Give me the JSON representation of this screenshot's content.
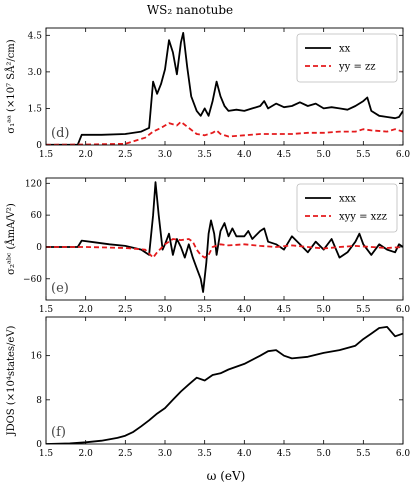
{
  "title": "WS₂ nanotube",
  "xlabel": "ω (eV)",
  "chart_data": [
    {
      "type": "line",
      "panel": "(d)",
      "ylabel": "σ₁ᵃᵃ (×10⁷ SÅ²/cm)",
      "xlim": [
        1.5,
        6.0
      ],
      "ylim": [
        0,
        4.8
      ],
      "xticks": [
        1.5,
        2.0,
        2.5,
        3.0,
        3.5,
        4.0,
        4.5,
        5.0,
        5.5,
        6.0
      ],
      "yticks": [
        0,
        1.5,
        3.0,
        4.5
      ],
      "ytick_labels": [
        "0",
        "1.5",
        "3.0",
        "4.5"
      ],
      "xtick_labels": [
        "1.5",
        "2.0",
        "2.5",
        "3.0",
        "3.5",
        "4.0",
        "4.5",
        "5.0",
        "5.5",
        "6.0"
      ],
      "legend_position": "top-right",
      "series": [
        {
          "name": "xx",
          "color": "#000000",
          "dash": "solid",
          "points": [
            [
              1.5,
              0.01
            ],
            [
              1.9,
              0.01
            ],
            [
              1.95,
              0.42
            ],
            [
              2.2,
              0.42
            ],
            [
              2.5,
              0.45
            ],
            [
              2.7,
              0.55
            ],
            [
              2.8,
              0.7
            ],
            [
              2.85,
              2.6
            ],
            [
              2.9,
              2.1
            ],
            [
              2.95,
              2.5
            ],
            [
              3.0,
              3.1
            ],
            [
              3.05,
              4.3
            ],
            [
              3.1,
              3.8
            ],
            [
              3.15,
              2.9
            ],
            [
              3.2,
              4.2
            ],
            [
              3.23,
              4.6
            ],
            [
              3.28,
              3.2
            ],
            [
              3.33,
              2.0
            ],
            [
              3.4,
              1.4
            ],
            [
              3.45,
              1.2
            ],
            [
              3.5,
              1.5
            ],
            [
              3.55,
              1.2
            ],
            [
              3.6,
              1.8
            ],
            [
              3.65,
              2.6
            ],
            [
              3.7,
              2.0
            ],
            [
              3.75,
              1.6
            ],
            [
              3.8,
              1.4
            ],
            [
              3.9,
              1.45
            ],
            [
              4.0,
              1.4
            ],
            [
              4.1,
              1.5
            ],
            [
              4.2,
              1.6
            ],
            [
              4.25,
              1.8
            ],
            [
              4.3,
              1.5
            ],
            [
              4.4,
              1.7
            ],
            [
              4.5,
              1.55
            ],
            [
              4.6,
              1.6
            ],
            [
              4.7,
              1.75
            ],
            [
              4.8,
              1.6
            ],
            [
              4.9,
              1.7
            ],
            [
              5.0,
              1.5
            ],
            [
              5.1,
              1.55
            ],
            [
              5.2,
              1.5
            ],
            [
              5.3,
              1.45
            ],
            [
              5.4,
              1.6
            ],
            [
              5.5,
              1.8
            ],
            [
              5.55,
              1.95
            ],
            [
              5.6,
              1.4
            ],
            [
              5.7,
              1.2
            ],
            [
              5.8,
              1.15
            ],
            [
              5.9,
              1.1
            ],
            [
              5.95,
              1.15
            ],
            [
              6.0,
              1.4
            ]
          ]
        },
        {
          "name": "yy = zz",
          "color": "#e41a1c",
          "dash": "dashed",
          "points": [
            [
              1.5,
              0.01
            ],
            [
              2.0,
              0.02
            ],
            [
              2.5,
              0.05
            ],
            [
              2.75,
              0.3
            ],
            [
              2.85,
              0.55
            ],
            [
              2.95,
              0.7
            ],
            [
              3.05,
              0.9
            ],
            [
              3.15,
              0.8
            ],
            [
              3.2,
              0.95
            ],
            [
              3.3,
              0.7
            ],
            [
              3.4,
              0.45
            ],
            [
              3.5,
              0.4
            ],
            [
              3.6,
              0.5
            ],
            [
              3.65,
              0.6
            ],
            [
              3.7,
              0.45
            ],
            [
              3.8,
              0.35
            ],
            [
              4.0,
              0.4
            ],
            [
              4.2,
              0.45
            ],
            [
              4.4,
              0.45
            ],
            [
              4.6,
              0.45
            ],
            [
              4.8,
              0.5
            ],
            [
              5.0,
              0.5
            ],
            [
              5.2,
              0.55
            ],
            [
              5.4,
              0.55
            ],
            [
              5.5,
              0.65
            ],
            [
              5.6,
              0.6
            ],
            [
              5.8,
              0.55
            ],
            [
              5.9,
              0.65
            ],
            [
              6.0,
              0.55
            ]
          ]
        }
      ]
    },
    {
      "type": "line",
      "panel": "(e)",
      "ylabel": "σ₂ᵃᵇᶜ (ÅmA/V²)",
      "xlim": [
        1.5,
        6.0
      ],
      "ylim": [
        -100,
        130
      ],
      "xticks": [
        1.5,
        2.0,
        2.5,
        3.0,
        3.5,
        4.0,
        4.5,
        5.0,
        5.5,
        6.0
      ],
      "yticks": [
        -60,
        0,
        60,
        120
      ],
      "ytick_labels": [
        "−60",
        "0",
        "60",
        "120"
      ],
      "xtick_labels": [
        "1.5",
        "2.0",
        "2.5",
        "3.0",
        "3.5",
        "4.0",
        "4.5",
        "5.0",
        "5.5",
        "6.0"
      ],
      "legend_position": "top-right",
      "series": [
        {
          "name": "xxx",
          "color": "#000000",
          "dash": "solid",
          "points": [
            [
              1.5,
              0
            ],
            [
              1.9,
              0
            ],
            [
              1.95,
              12
            ],
            [
              2.1,
              9
            ],
            [
              2.3,
              5
            ],
            [
              2.5,
              2
            ],
            [
              2.7,
              -5
            ],
            [
              2.8,
              -15
            ],
            [
              2.85,
              60
            ],
            [
              2.88,
              122
            ],
            [
              2.92,
              60
            ],
            [
              2.97,
              -5
            ],
            [
              3.0,
              5
            ],
            [
              3.05,
              25
            ],
            [
              3.1,
              -15
            ],
            [
              3.15,
              15
            ],
            [
              3.2,
              0
            ],
            [
              3.25,
              -20
            ],
            [
              3.3,
              5
            ],
            [
              3.35,
              -20
            ],
            [
              3.4,
              -40
            ],
            [
              3.45,
              -60
            ],
            [
              3.48,
              -85
            ],
            [
              3.52,
              -30
            ],
            [
              3.55,
              25
            ],
            [
              3.58,
              50
            ],
            [
              3.62,
              25
            ],
            [
              3.65,
              -15
            ],
            [
              3.7,
              30
            ],
            [
              3.75,
              45
            ],
            [
              3.8,
              20
            ],
            [
              3.85,
              35
            ],
            [
              3.9,
              20
            ],
            [
              4.0,
              20
            ],
            [
              4.05,
              30
            ],
            [
              4.1,
              15
            ],
            [
              4.2,
              30
            ],
            [
              4.25,
              35
            ],
            [
              4.3,
              10
            ],
            [
              4.4,
              5
            ],
            [
              4.5,
              -5
            ],
            [
              4.6,
              20
            ],
            [
              4.7,
              5
            ],
            [
              4.8,
              -10
            ],
            [
              4.9,
              10
            ],
            [
              5.0,
              -5
            ],
            [
              5.1,
              15
            ],
            [
              5.2,
              -20
            ],
            [
              5.3,
              -10
            ],
            [
              5.4,
              10
            ],
            [
              5.45,
              25
            ],
            [
              5.5,
              5
            ],
            [
              5.6,
              -15
            ],
            [
              5.7,
              5
            ],
            [
              5.8,
              -5
            ],
            [
              5.9,
              -10
            ],
            [
              5.95,
              5
            ],
            [
              6.0,
              0
            ]
          ]
        },
        {
          "name": "xyy = xzz",
          "color": "#e41a1c",
          "dash": "dashed",
          "points": [
            [
              1.5,
              0
            ],
            [
              2.0,
              0
            ],
            [
              2.5,
              -2
            ],
            [
              2.75,
              -5
            ],
            [
              2.85,
              -20
            ],
            [
              2.9,
              -10
            ],
            [
              3.0,
              5
            ],
            [
              3.05,
              10
            ],
            [
              3.1,
              15
            ],
            [
              3.2,
              13
            ],
            [
              3.3,
              15
            ],
            [
              3.35,
              10
            ],
            [
              3.4,
              -5
            ],
            [
              3.45,
              -15
            ],
            [
              3.5,
              -20
            ],
            [
              3.55,
              -15
            ],
            [
              3.6,
              0
            ],
            [
              3.7,
              5
            ],
            [
              3.8,
              3
            ],
            [
              4.0,
              5
            ],
            [
              4.2,
              2
            ],
            [
              4.4,
              0
            ],
            [
              4.6,
              3
            ],
            [
              4.8,
              0
            ],
            [
              5.0,
              -3
            ],
            [
              5.2,
              0
            ],
            [
              5.4,
              2
            ],
            [
              5.6,
              0
            ],
            [
              5.8,
              -2
            ],
            [
              6.0,
              0
            ]
          ]
        }
      ]
    },
    {
      "type": "line",
      "panel": "(f)",
      "ylabel": "JDOS (×10⁴states/eV)",
      "xlim": [
        1.5,
        6.0
      ],
      "ylim": [
        0,
        23
      ],
      "xticks": [
        1.5,
        2.0,
        2.5,
        3.0,
        3.5,
        4.0,
        4.5,
        5.0,
        5.5,
        6.0
      ],
      "yticks": [
        0,
        8,
        16
      ],
      "ytick_labels": [
        "0",
        "8",
        "16"
      ],
      "xtick_labels": [
        "1.5",
        "2.0",
        "2.5",
        "3.0",
        "3.5",
        "4.0",
        "4.5",
        "5.0",
        "5.5",
        "6.0"
      ],
      "series": [
        {
          "color": "#000000",
          "dash": "solid",
          "points": [
            [
              1.5,
              0
            ],
            [
              1.8,
              0.1
            ],
            [
              2.0,
              0.3
            ],
            [
              2.2,
              0.6
            ],
            [
              2.4,
              1.1
            ],
            [
              2.5,
              1.5
            ],
            [
              2.6,
              2.2
            ],
            [
              2.7,
              3.2
            ],
            [
              2.8,
              4.3
            ],
            [
              2.9,
              5.5
            ],
            [
              3.0,
              6.5
            ],
            [
              3.1,
              8
            ],
            [
              3.2,
              9.5
            ],
            [
              3.3,
              10.8
            ],
            [
              3.4,
              12
            ],
            [
              3.5,
              11.5
            ],
            [
              3.6,
              12.5
            ],
            [
              3.7,
              12.8
            ],
            [
              3.8,
              13.5
            ],
            [
              4.0,
              14.5
            ],
            [
              4.2,
              16
            ],
            [
              4.3,
              16.8
            ],
            [
              4.4,
              17
            ],
            [
              4.5,
              16
            ],
            [
              4.6,
              15.5
            ],
            [
              4.8,
              15.8
            ],
            [
              5.0,
              16.5
            ],
            [
              5.2,
              17
            ],
            [
              5.4,
              17.8
            ],
            [
              5.5,
              19
            ],
            [
              5.6,
              20
            ],
            [
              5.7,
              21
            ],
            [
              5.8,
              21.2
            ],
            [
              5.9,
              19.5
            ],
            [
              6.0,
              20
            ]
          ]
        }
      ]
    }
  ]
}
